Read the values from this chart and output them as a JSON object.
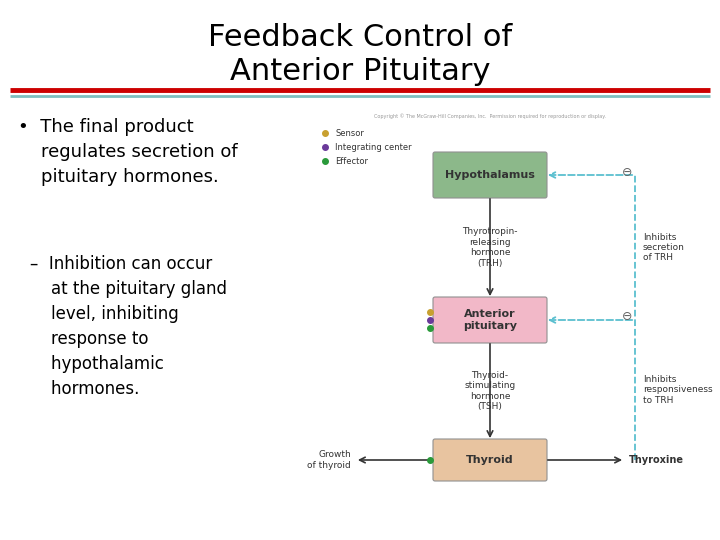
{
  "title_line1": "Feedback Control of",
  "title_line2": "Anterior Pituitary",
  "title_fontsize": 22,
  "title_color": "#000000",
  "rule1_color": "#cc0000",
  "rule2_color": "#7fbfbf",
  "bg_color": "#ffffff",
  "bullet_fontsize": 13,
  "sub_bullet_fontsize": 12,
  "hyp_color": "#8cb88a",
  "ant_color": "#f2b8c8",
  "thy_color": "#e8c4a0",
  "legend_sensor_color": "#c8a030",
  "legend_integrating_color": "#6a3a9a",
  "legend_effector_color": "#2a9a3a",
  "feedback_color": "#5abfcf",
  "arrow_color": "#333333",
  "text_color": "#333333",
  "copyright_text": "Copyright © The McGraw-Hill Companies, Inc.  Permission required for reproduction or display.",
  "trh_label": "Thyrotropin-\nreleasing\nhormone\n(TRH)",
  "tsh_label": "Thyroid-\nstimulating\nhormone\n(TSH)",
  "thyroxine_label": "Thyroxine",
  "growth_label": "Growth\nof thyroid",
  "inhibits_trh_label": "Inhibits\nsecretion\nof TRH",
  "inhibits_resp_label": "Inhibits\nresponsiveness\nto TRH"
}
